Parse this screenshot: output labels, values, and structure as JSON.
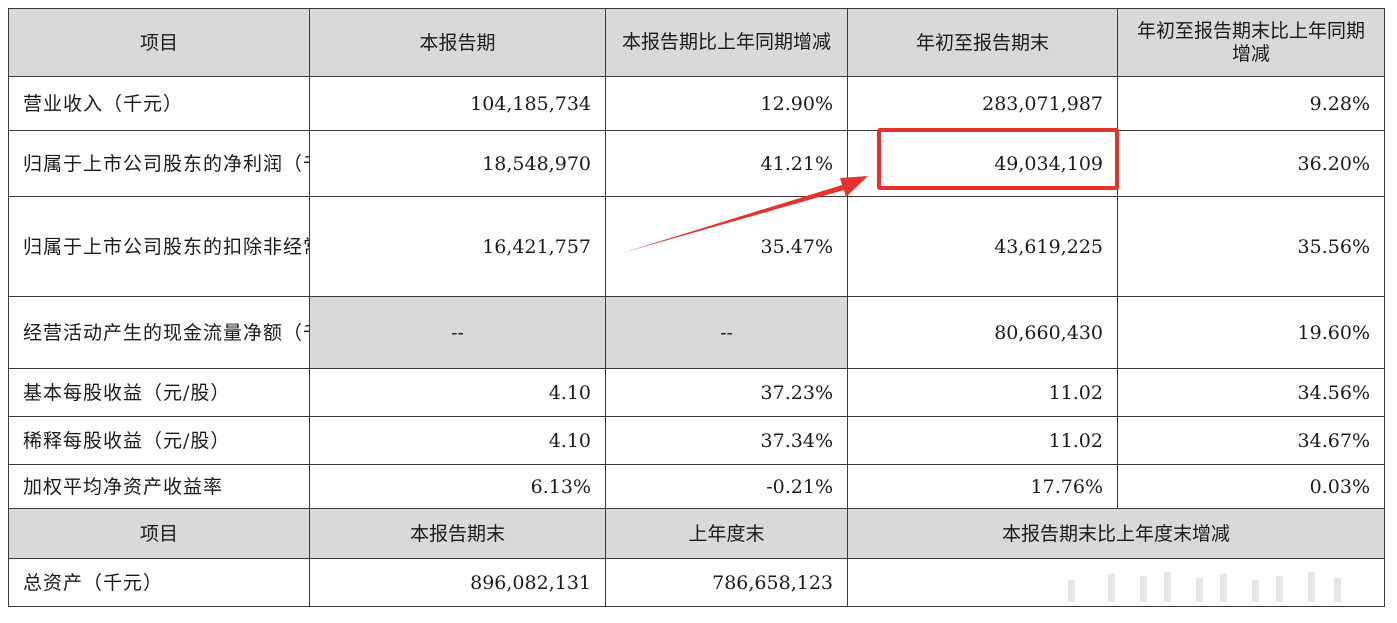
{
  "table": {
    "header": [
      "项目",
      "本报告期",
      "本报告期比上年同期增减",
      "年初至报告期末",
      "年初至报告期末比上年同期增减"
    ],
    "rows": [
      {
        "label": "营业收入（千元）",
        "c1": "104,185,734",
        "c2": "12.90%",
        "c3": "283,071,987",
        "c4": "9.28%"
      },
      {
        "label": "归属于上市公司股东的净利润（千元）",
        "c1": "18,548,970",
        "c2": "41.21%",
        "c3": "49,034,109",
        "c4": "36.20%"
      },
      {
        "label": "归属于上市公司股东的扣除非经常性损益的净利润（千元）",
        "c1": "16,421,757",
        "c2": "35.47%",
        "c3": "43,619,225",
        "c4": "35.56%"
      },
      {
        "label": "经营活动产生的现金流量净额（千元）",
        "c1": "--",
        "c2": "--",
        "c3": "80,660,430",
        "c4": "19.60%"
      },
      {
        "label": "基本每股收益（元/股）",
        "c1": "4.10",
        "c2": "37.23%",
        "c3": "11.02",
        "c4": "34.56%"
      },
      {
        "label": "稀释每股收益（元/股）",
        "c1": "4.10",
        "c2": "37.34%",
        "c3": "11.02",
        "c4": "34.67%"
      },
      {
        "label": "加权平均净资产收益率",
        "c1": "6.13%",
        "c2": "-0.21%",
        "c3": "17.76%",
        "c4": "0.03%"
      }
    ],
    "header2": [
      "项目",
      "本报告期末",
      "上年度末",
      "本报告期末比上年度末增减"
    ],
    "assets": {
      "label": "总资产（千元）",
      "c1": "896,082,131",
      "c2": "786,658,123",
      "c3": ""
    }
  },
  "annotation": {
    "color": "#e5322d"
  }
}
